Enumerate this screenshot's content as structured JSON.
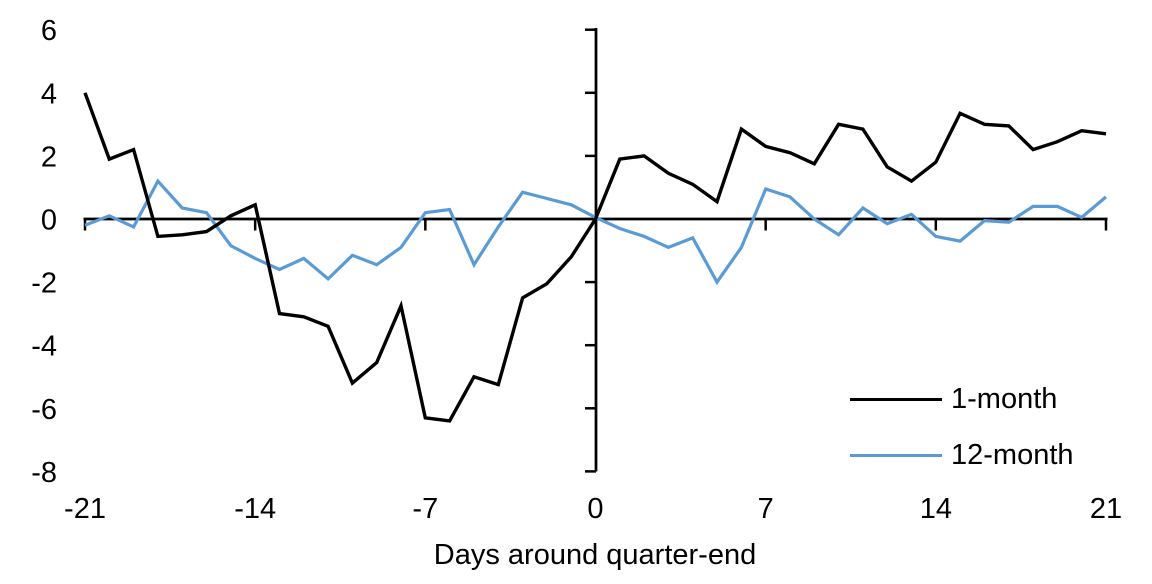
{
  "chart_data": {
    "type": "line",
    "title": "",
    "xlabel": "Days around quarter-end",
    "ylabel": "",
    "x": [
      -21,
      -20,
      -19,
      -18,
      -17,
      -16,
      -15,
      -14,
      -13,
      -12,
      -11,
      -10,
      -9,
      -8,
      -7,
      -6,
      -5,
      -4,
      -3,
      -2,
      -1,
      0,
      1,
      2,
      3,
      4,
      5,
      6,
      7,
      8,
      9,
      10,
      11,
      12,
      13,
      14,
      15,
      16,
      17,
      18,
      19,
      20,
      21
    ],
    "series": [
      {
        "name": "1-month",
        "color": "#000000",
        "values": [
          4.0,
          1.9,
          2.2,
          -0.55,
          -0.5,
          -0.4,
          0.1,
          0.45,
          -3.0,
          -3.1,
          -3.4,
          -5.2,
          -4.55,
          -2.75,
          -6.3,
          -6.4,
          -5.0,
          -5.25,
          -2.5,
          -2.05,
          -1.2,
          0.0,
          1.9,
          2.0,
          1.45,
          1.1,
          0.55,
          2.85,
          2.3,
          2.1,
          1.75,
          3.0,
          2.85,
          1.65,
          1.2,
          1.8,
          3.35,
          3.0,
          2.95,
          2.2,
          2.45,
          2.8,
          2.7
        ]
      },
      {
        "name": "12-month",
        "color": "#5B9BD5",
        "values": [
          -0.2,
          0.1,
          -0.25,
          1.2,
          0.35,
          0.2,
          -0.85,
          -1.25,
          -1.6,
          -1.25,
          -1.9,
          -1.15,
          -1.45,
          -0.9,
          0.2,
          0.3,
          -1.45,
          -0.25,
          0.85,
          0.65,
          0.45,
          0.05,
          -0.3,
          -0.55,
          -0.9,
          -0.6,
          -2.0,
          -0.9,
          0.95,
          0.7,
          0.0,
          -0.5,
          0.35,
          -0.15,
          0.15,
          -0.55,
          -0.7,
          -0.05,
          -0.1,
          0.4,
          0.4,
          0.05,
          0.7
        ]
      }
    ],
    "xlim": [
      -21,
      21
    ],
    "ylim": [
      -8,
      6
    ],
    "x_ticks": [
      -21,
      -14,
      -7,
      0,
      7,
      14,
      21
    ],
    "y_ticks": [
      6,
      4,
      2,
      0,
      -2,
      -4,
      -6,
      -8
    ],
    "grid": false,
    "legend_position": "bottom-right",
    "axis_color": "#000000"
  }
}
